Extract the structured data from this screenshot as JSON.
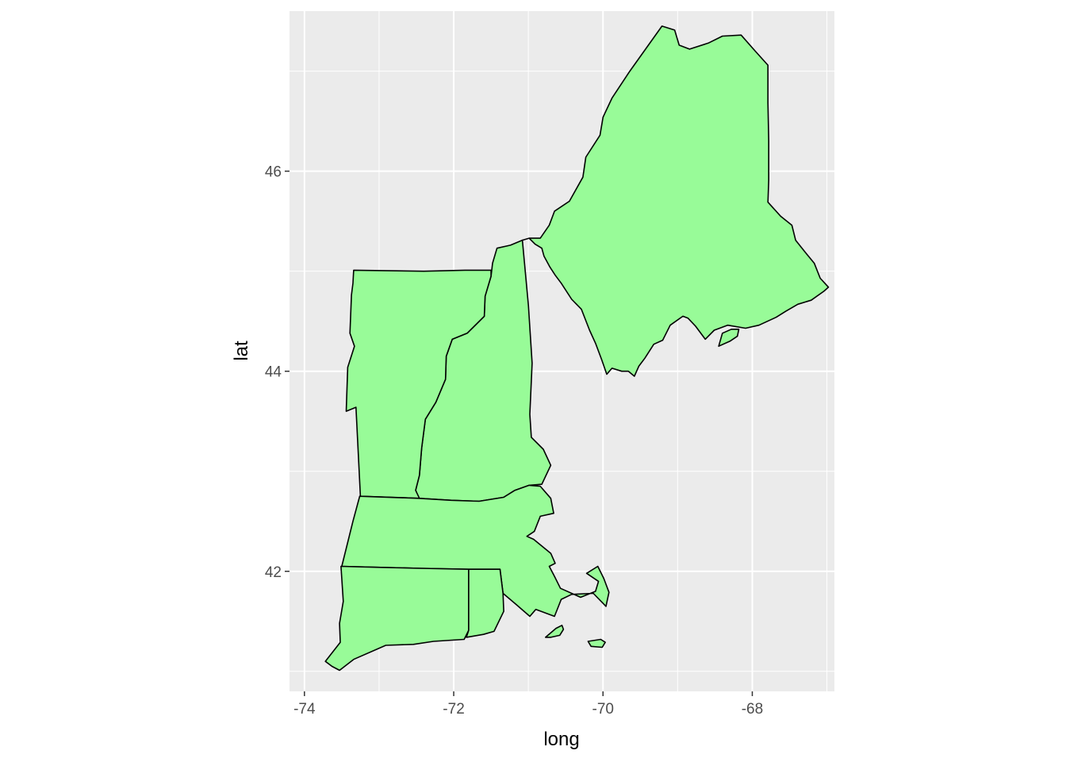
{
  "chart_data": {
    "type": "map",
    "xlabel": "long",
    "ylabel": "lat",
    "xlim": [
      -74.2,
      -66.9
    ],
    "ylim": [
      40.8,
      47.6
    ],
    "x_ticks": [
      -74,
      -72,
      -70,
      -68
    ],
    "x_tick_labels": [
      "-74",
      "-72",
      "-70",
      "-68"
    ],
    "y_ticks": [
      42,
      44,
      46
    ],
    "y_tick_labels": [
      "42",
      "44",
      "46"
    ],
    "x_minor_grid": [
      -73,
      -71,
      -69,
      -67
    ],
    "y_minor_grid": [
      41,
      43,
      45,
      47
    ],
    "panel_background": "#ebebeb",
    "grid_color": "#ffffff",
    "fill_color": "#98fb98",
    "border_color": "#000000",
    "regions": [
      {
        "id": "maine",
        "points": [
          [
            -71.08,
            45.31
          ],
          [
            -70.99,
            45.33
          ],
          [
            -70.91,
            45.27
          ],
          [
            -70.82,
            45.23
          ],
          [
            -70.79,
            45.15
          ],
          [
            -70.71,
            45.04
          ],
          [
            -70.64,
            44.96
          ],
          [
            -70.56,
            44.88
          ],
          [
            -70.42,
            44.72
          ],
          [
            -70.29,
            44.62
          ],
          [
            -70.18,
            44.41
          ],
          [
            -70.1,
            44.28
          ],
          [
            -70.02,
            44.12
          ],
          [
            -69.95,
            43.97
          ],
          [
            -69.88,
            44.03
          ],
          [
            -69.75,
            44.0
          ],
          [
            -69.66,
            44.0
          ],
          [
            -69.58,
            43.95
          ],
          [
            -69.52,
            44.05
          ],
          [
            -69.44,
            44.13
          ],
          [
            -69.32,
            44.27
          ],
          [
            -69.2,
            44.31
          ],
          [
            -69.1,
            44.46
          ],
          [
            -68.93,
            44.55
          ],
          [
            -68.86,
            44.53
          ],
          [
            -68.76,
            44.45
          ],
          [
            -68.63,
            44.32
          ],
          [
            -68.51,
            44.41
          ],
          [
            -68.33,
            44.46
          ],
          [
            -68.09,
            44.43
          ],
          [
            -67.91,
            44.46
          ],
          [
            -67.68,
            44.54
          ],
          [
            -67.55,
            44.6
          ],
          [
            -67.39,
            44.67
          ],
          [
            -67.21,
            44.71
          ],
          [
            -67.04,
            44.8
          ],
          [
            -66.98,
            44.84
          ],
          [
            -67.09,
            44.93
          ],
          [
            -67.17,
            45.08
          ],
          [
            -67.28,
            45.18
          ],
          [
            -67.42,
            45.31
          ],
          [
            -67.47,
            45.46
          ],
          [
            -67.62,
            45.55
          ],
          [
            -67.79,
            45.69
          ],
          [
            -67.78,
            45.91
          ],
          [
            -67.78,
            46.3
          ],
          [
            -67.79,
            46.68
          ],
          [
            -67.79,
            47.06
          ],
          [
            -67.96,
            47.2
          ],
          [
            -68.15,
            47.36
          ],
          [
            -68.4,
            47.35
          ],
          [
            -68.59,
            47.28
          ],
          [
            -68.84,
            47.22
          ],
          [
            -68.98,
            47.26
          ],
          [
            -69.04,
            47.41
          ],
          [
            -69.21,
            47.45
          ],
          [
            -69.42,
            47.23
          ],
          [
            -69.64,
            47.0
          ],
          [
            -69.88,
            46.73
          ],
          [
            -70.0,
            46.54
          ],
          [
            -70.04,
            46.36
          ],
          [
            -70.23,
            46.14
          ],
          [
            -70.27,
            45.94
          ],
          [
            -70.45,
            45.7
          ],
          [
            -70.65,
            45.6
          ],
          [
            -70.72,
            45.46
          ],
          [
            -70.84,
            45.33
          ],
          [
            -70.99,
            45.33
          ]
        ]
      },
      {
        "id": "new-hampshire",
        "points": [
          [
            -71.08,
            45.31
          ],
          [
            -71.24,
            45.26
          ],
          [
            -71.42,
            45.23
          ],
          [
            -71.48,
            45.08
          ],
          [
            -71.5,
            44.95
          ],
          [
            -71.58,
            44.75
          ],
          [
            -71.59,
            44.55
          ],
          [
            -71.82,
            44.38
          ],
          [
            -72.02,
            44.32
          ],
          [
            -72.1,
            44.15
          ],
          [
            -72.11,
            43.92
          ],
          [
            -72.24,
            43.69
          ],
          [
            -72.38,
            43.52
          ],
          [
            -72.43,
            43.23
          ],
          [
            -72.46,
            42.96
          ],
          [
            -72.51,
            42.81
          ],
          [
            -72.47,
            42.73
          ],
          [
            -72.03,
            42.71
          ],
          [
            -71.66,
            42.7
          ],
          [
            -71.33,
            42.74
          ],
          [
            -71.18,
            42.81
          ],
          [
            -70.99,
            42.86
          ],
          [
            -70.82,
            42.87
          ],
          [
            -70.7,
            43.06
          ],
          [
            -70.8,
            43.22
          ],
          [
            -70.96,
            43.34
          ],
          [
            -70.98,
            43.57
          ],
          [
            -70.95,
            44.08
          ],
          [
            -71.0,
            44.66
          ],
          [
            -71.08,
            45.31
          ]
        ]
      },
      {
        "id": "vermont",
        "points": [
          [
            -71.5,
            45.01
          ],
          [
            -71.85,
            45.01
          ],
          [
            -72.4,
            45.0
          ],
          [
            -73.34,
            45.01
          ],
          [
            -73.35,
            44.88
          ],
          [
            -73.37,
            44.76
          ],
          [
            -73.39,
            44.38
          ],
          [
            -73.33,
            44.25
          ],
          [
            -73.42,
            44.04
          ],
          [
            -73.44,
            43.6
          ],
          [
            -73.31,
            43.64
          ],
          [
            -73.25,
            42.75
          ],
          [
            -72.46,
            42.73
          ],
          [
            -72.51,
            42.81
          ],
          [
            -72.46,
            42.96
          ],
          [
            -72.43,
            43.23
          ],
          [
            -72.38,
            43.52
          ],
          [
            -72.24,
            43.69
          ],
          [
            -72.11,
            43.92
          ],
          [
            -72.1,
            44.15
          ],
          [
            -72.02,
            44.32
          ],
          [
            -71.82,
            44.38
          ],
          [
            -71.59,
            44.55
          ],
          [
            -71.58,
            44.75
          ],
          [
            -71.5,
            44.95
          ],
          [
            -71.5,
            45.01
          ]
        ]
      },
      {
        "id": "massachusetts",
        "points": [
          [
            -73.26,
            42.75
          ],
          [
            -73.35,
            42.5
          ],
          [
            -73.5,
            42.05
          ],
          [
            -73.03,
            42.04
          ],
          [
            -72.45,
            42.03
          ],
          [
            -71.8,
            42.02
          ],
          [
            -71.38,
            42.02
          ],
          [
            -71.34,
            41.78
          ],
          [
            -71.15,
            41.66
          ],
          [
            -70.98,
            41.55
          ],
          [
            -70.9,
            41.62
          ],
          [
            -70.65,
            41.55
          ],
          [
            -70.56,
            41.72
          ],
          [
            -70.42,
            41.77
          ],
          [
            -70.13,
            41.78
          ],
          [
            -69.96,
            41.65
          ],
          [
            -69.92,
            41.79
          ],
          [
            -69.99,
            41.93
          ],
          [
            -70.07,
            42.05
          ],
          [
            -70.22,
            41.98
          ],
          [
            -70.06,
            41.9
          ],
          [
            -70.1,
            41.8
          ],
          [
            -70.3,
            41.74
          ],
          [
            -70.57,
            41.83
          ],
          [
            -70.65,
            41.95
          ],
          [
            -70.72,
            42.05
          ],
          [
            -70.64,
            42.08
          ],
          [
            -70.7,
            42.18
          ],
          [
            -70.93,
            42.32
          ],
          [
            -71.02,
            42.35
          ],
          [
            -70.92,
            42.4
          ],
          [
            -70.84,
            42.55
          ],
          [
            -70.66,
            42.58
          ],
          [
            -70.7,
            42.73
          ],
          [
            -70.84,
            42.85
          ],
          [
            -70.99,
            42.86
          ],
          [
            -71.18,
            42.81
          ],
          [
            -71.33,
            42.74
          ],
          [
            -71.66,
            42.7
          ],
          [
            -72.03,
            42.71
          ],
          [
            -72.47,
            42.73
          ],
          [
            -73.26,
            42.75
          ]
        ]
      },
      {
        "id": "connecticut",
        "points": [
          [
            -73.51,
            42.05
          ],
          [
            -73.48,
            41.7
          ],
          [
            -73.53,
            41.48
          ],
          [
            -73.52,
            41.29
          ],
          [
            -73.72,
            41.1
          ],
          [
            -73.63,
            41.05
          ],
          [
            -73.53,
            41.01
          ],
          [
            -73.34,
            41.12
          ],
          [
            -72.91,
            41.26
          ],
          [
            -72.54,
            41.27
          ],
          [
            -72.27,
            41.3
          ],
          [
            -71.86,
            41.32
          ],
          [
            -71.8,
            41.41
          ],
          [
            -71.8,
            42.02
          ],
          [
            -72.45,
            42.03
          ],
          [
            -73.03,
            42.04
          ],
          [
            -73.51,
            42.05
          ]
        ]
      },
      {
        "id": "rhode-island",
        "points": [
          [
            -71.8,
            42.02
          ],
          [
            -71.38,
            42.02
          ],
          [
            -71.34,
            41.78
          ],
          [
            -71.33,
            41.6
          ],
          [
            -71.46,
            41.4
          ],
          [
            -71.6,
            41.37
          ],
          [
            -71.83,
            41.34
          ],
          [
            -71.8,
            41.41
          ],
          [
            -71.8,
            42.02
          ]
        ]
      },
      {
        "id": "marthas-vineyard",
        "points": [
          [
            -70.77,
            41.34
          ],
          [
            -70.63,
            41.43
          ],
          [
            -70.55,
            41.46
          ],
          [
            -70.53,
            41.42
          ],
          [
            -70.58,
            41.36
          ],
          [
            -70.7,
            41.34
          ],
          [
            -70.77,
            41.34
          ]
        ]
      },
      {
        "id": "nantucket",
        "points": [
          [
            -70.2,
            41.3
          ],
          [
            -70.03,
            41.32
          ],
          [
            -69.97,
            41.29
          ],
          [
            -70.01,
            41.24
          ],
          [
            -70.16,
            41.25
          ],
          [
            -70.2,
            41.3
          ]
        ]
      },
      {
        "id": "mount-desert-island",
        "points": [
          [
            -68.45,
            44.25
          ],
          [
            -68.3,
            44.3
          ],
          [
            -68.2,
            44.35
          ],
          [
            -68.18,
            44.42
          ],
          [
            -68.28,
            44.42
          ],
          [
            -68.4,
            44.38
          ],
          [
            -68.45,
            44.25
          ]
        ]
      }
    ]
  }
}
